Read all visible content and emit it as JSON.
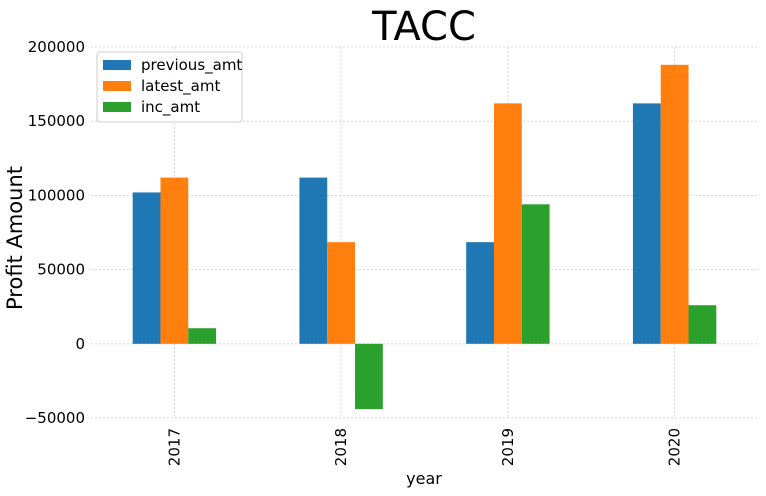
{
  "chart_data": {
    "type": "bar",
    "title": "TACC",
    "xlabel": "year",
    "ylabel": "Profit Amount",
    "categories": [
      "2017",
      "2018",
      "2019",
      "2020"
    ],
    "series": [
      {
        "name": "previous_amt",
        "color": "#1f77b4",
        "values": [
          102000,
          112000,
          68500,
          162000
        ]
      },
      {
        "name": "latest_amt",
        "color": "#ff7f0e",
        "values": [
          112000,
          68500,
          162000,
          188000
        ]
      },
      {
        "name": "inc_amt",
        "color": "#2ca02c",
        "values": [
          10500,
          -44000,
          94000,
          26000
        ]
      }
    ],
    "ylim": [
      -50000,
      200000
    ],
    "yticks": [
      -50000,
      0,
      50000,
      100000,
      150000,
      200000
    ],
    "ytick_labels": [
      "−50000",
      "0",
      "50000",
      "100000",
      "150000",
      "200000"
    ],
    "grid": true,
    "legend_position": "top-left"
  }
}
